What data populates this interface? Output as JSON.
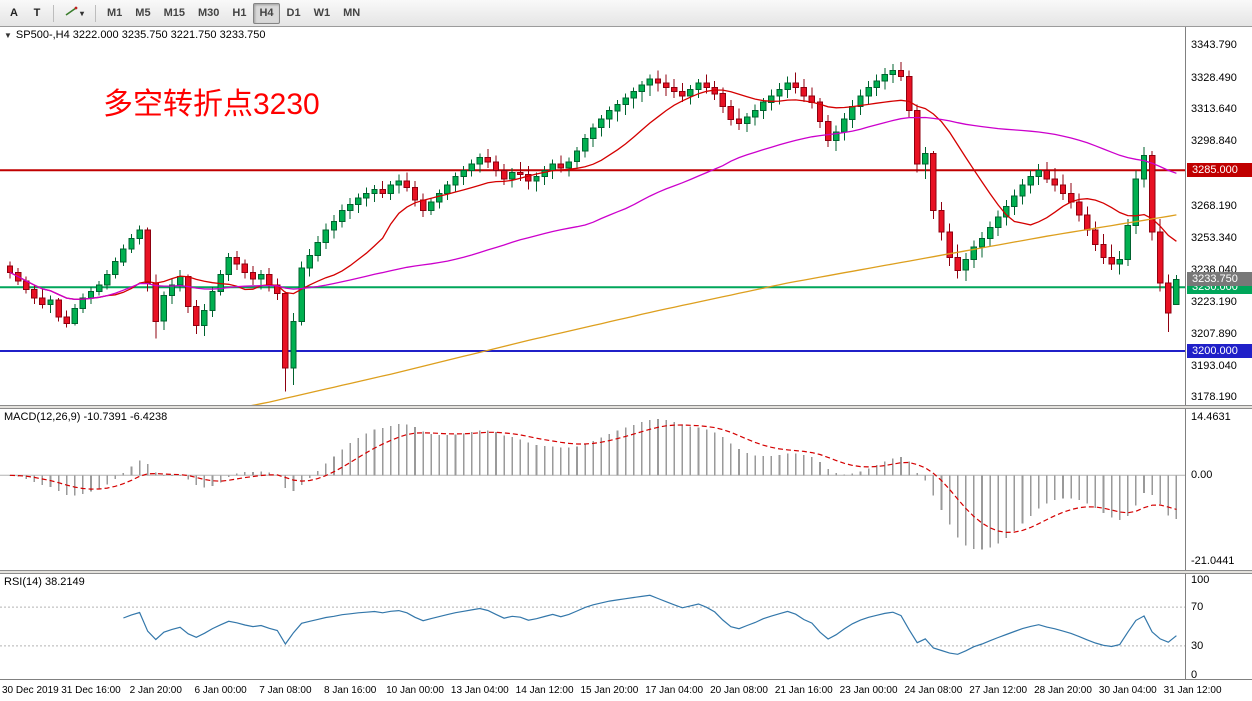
{
  "toolbar": {
    "tool_buttons": [
      {
        "id": "arrow-tool",
        "label": "A"
      },
      {
        "id": "text-tool",
        "label": "T"
      }
    ],
    "timeframes": [
      "M1",
      "M5",
      "M15",
      "M30",
      "H1",
      "H4",
      "D1",
      "W1",
      "MN"
    ],
    "active_timeframe": "H4"
  },
  "icons": {
    "collapse_arrow": "▼",
    "dropdown_caret": "▾"
  },
  "main_chart": {
    "symbol_line": "SP500-,H4 3222.000 3235.750 3221.750 3233.750",
    "annotation": {
      "text": "多空转折点3230",
      "color": "#ff0000"
    },
    "y_ticks": [
      "3343.790",
      "3328.490",
      "3313.640",
      "3298.840",
      "3268.190",
      "3253.340",
      "3238.040",
      "3223.190",
      "3207.890",
      "3193.040",
      "3178.190"
    ],
    "hlines": [
      {
        "label": "3285.000",
        "value": 3285.0,
        "color": "#c00000",
        "thickness": 2
      },
      {
        "label": "3230.000",
        "value": 3230.0,
        "color": "#00a65a",
        "thickness": 2
      },
      {
        "label": "3200.000",
        "value": 3200.0,
        "color": "#2020c8",
        "thickness": 2
      }
    ],
    "current_price": {
      "label": "3233.750",
      "value": 3233.75,
      "color": "#787878"
    },
    "price_axis": {
      "top": 3350.5,
      "bottom": 3176.5
    }
  },
  "macd_panel": {
    "label": "MACD(12,26,9) -10.7391 -6.4238",
    "ticks": [
      {
        "label": "14.4631",
        "value": 14.4631
      },
      {
        "label": "0.00",
        "value": 0
      },
      {
        "label": "-21.0441",
        "value": -21.0441
      }
    ]
  },
  "rsi_panel": {
    "label": "RSI(14) 38.2149",
    "value": 38.2149,
    "ticks": [
      {
        "label": "100",
        "value": 100
      },
      {
        "label": "70",
        "value": 70
      },
      {
        "label": "30",
        "value": 30
      },
      {
        "label": "0",
        "value": 0
      }
    ],
    "dashed_levels": [
      70,
      30
    ]
  },
  "chart_data": {
    "type": "candlestick",
    "symbol": "SP500-",
    "timeframe": "H4",
    "last_bar": {
      "open": 3222.0,
      "high": 3235.75,
      "low": 3221.75,
      "close": 3233.75
    },
    "time_labels": [
      "30 Dec 2019",
      "31 Dec 16:00",
      "2 Jan 20:00",
      "6 Jan 00:00",
      "7 Jan 08:00",
      "8 Jan 16:00",
      "10 Jan 00:00",
      "13 Jan 04:00",
      "14 Jan 12:00",
      "15 Jan 20:00",
      "17 Jan 04:00",
      "20 Jan 08:00",
      "21 Jan 16:00",
      "23 Jan 00:00",
      "24 Jan 08:00",
      "27 Jan 12:00",
      "28 Jan 20:00",
      "30 Jan 04:00",
      "31 Jan 12:00"
    ],
    "label_every_n_bars": 8,
    "first_label_bar_index": 2,
    "ohlc": [
      [
        3240,
        3242,
        3234,
        3237
      ],
      [
        3237,
        3239,
        3231,
        3233
      ],
      [
        3233,
        3235,
        3227,
        3229
      ],
      [
        3229,
        3231,
        3222,
        3225
      ],
      [
        3225,
        3229,
        3220,
        3222
      ],
      [
        3222,
        3226,
        3218,
        3224
      ],
      [
        3224,
        3225,
        3214,
        3216
      ],
      [
        3216,
        3219,
        3211,
        3213
      ],
      [
        3213,
        3222,
        3212,
        3220
      ],
      [
        3220,
        3227,
        3218,
        3225
      ],
      [
        3225,
        3230,
        3222,
        3228
      ],
      [
        3228,
        3233,
        3226,
        3231
      ],
      [
        3231,
        3238,
        3229,
        3236
      ],
      [
        3236,
        3244,
        3234,
        3242
      ],
      [
        3242,
        3250,
        3240,
        3248
      ],
      [
        3248,
        3255,
        3246,
        3253
      ],
      [
        3253,
        3259,
        3250,
        3257
      ],
      [
        3257,
        3258,
        3228,
        3232
      ],
      [
        3232,
        3236,
        3206,
        3214
      ],
      [
        3214,
        3228,
        3210,
        3226
      ],
      [
        3226,
        3234,
        3222,
        3231
      ],
      [
        3231,
        3238,
        3228,
        3235
      ],
      [
        3235,
        3236,
        3218,
        3221
      ],
      [
        3221,
        3224,
        3208,
        3212
      ],
      [
        3212,
        3222,
        3207,
        3219
      ],
      [
        3219,
        3230,
        3216,
        3228
      ],
      [
        3228,
        3238,
        3226,
        3236
      ],
      [
        3236,
        3246,
        3233,
        3244
      ],
      [
        3244,
        3247,
        3238,
        3241
      ],
      [
        3241,
        3243,
        3234,
        3237
      ],
      [
        3237,
        3240,
        3231,
        3234
      ],
      [
        3234,
        3238,
        3229,
        3236
      ],
      [
        3236,
        3239,
        3228,
        3231
      ],
      [
        3231,
        3234,
        3224,
        3227
      ],
      [
        3227,
        3228,
        3181,
        3192
      ],
      [
        3192,
        3218,
        3184,
        3214
      ],
      [
        3214,
        3242,
        3212,
        3239
      ],
      [
        3239,
        3248,
        3235,
        3245
      ],
      [
        3245,
        3254,
        3242,
        3251
      ],
      [
        3251,
        3260,
        3248,
        3257
      ],
      [
        3257,
        3264,
        3253,
        3261
      ],
      [
        3261,
        3269,
        3258,
        3266
      ],
      [
        3266,
        3272,
        3262,
        3269
      ],
      [
        3269,
        3274,
        3265,
        3272
      ],
      [
        3272,
        3277,
        3268,
        3274
      ],
      [
        3274,
        3278,
        3270,
        3276
      ],
      [
        3276,
        3280,
        3272,
        3274
      ],
      [
        3274,
        3280,
        3271,
        3278
      ],
      [
        3278,
        3283,
        3274,
        3280
      ],
      [
        3280,
        3284,
        3275,
        3277
      ],
      [
        3277,
        3280,
        3268,
        3271
      ],
      [
        3271,
        3274,
        3263,
        3266
      ],
      [
        3266,
        3272,
        3264,
        3270
      ],
      [
        3270,
        3276,
        3267,
        3274
      ],
      [
        3274,
        3280,
        3271,
        3278
      ],
      [
        3278,
        3284,
        3275,
        3282
      ],
      [
        3282,
        3287,
        3278,
        3285
      ],
      [
        3285,
        3290,
        3282,
        3288
      ],
      [
        3288,
        3293,
        3284,
        3291
      ],
      [
        3291,
        3295,
        3286,
        3289
      ],
      [
        3289,
        3292,
        3282,
        3285
      ],
      [
        3285,
        3288,
        3278,
        3281
      ],
      [
        3281,
        3286,
        3277,
        3284
      ],
      [
        3284,
        3289,
        3280,
        3283
      ],
      [
        3283,
        3287,
        3276,
        3280
      ],
      [
        3280,
        3284,
        3275,
        3282
      ],
      [
        3282,
        3287,
        3278,
        3285
      ],
      [
        3285,
        3290,
        3281,
        3288
      ],
      [
        3288,
        3292,
        3284,
        3286
      ],
      [
        3286,
        3291,
        3282,
        3289
      ],
      [
        3289,
        3296,
        3286,
        3294
      ],
      [
        3294,
        3302,
        3291,
        3300
      ],
      [
        3300,
        3307,
        3296,
        3305
      ],
      [
        3305,
        3311,
        3301,
        3309
      ],
      [
        3309,
        3315,
        3305,
        3313
      ],
      [
        3313,
        3318,
        3308,
        3316
      ],
      [
        3316,
        3321,
        3311,
        3319
      ],
      [
        3319,
        3324,
        3314,
        3322
      ],
      [
        3322,
        3327,
        3317,
        3325
      ],
      [
        3325,
        3330,
        3320,
        3328
      ],
      [
        3328,
        3332,
        3322,
        3326
      ],
      [
        3326,
        3330,
        3320,
        3324
      ],
      [
        3324,
        3328,
        3319,
        3322
      ],
      [
        3322,
        3326,
        3317,
        3320
      ],
      [
        3320,
        3325,
        3316,
        3323
      ],
      [
        3323,
        3328,
        3319,
        3326
      ],
      [
        3326,
        3330,
        3321,
        3324
      ],
      [
        3324,
        3327,
        3318,
        3321
      ],
      [
        3321,
        3324,
        3312,
        3315
      ],
      [
        3315,
        3318,
        3306,
        3309
      ],
      [
        3309,
        3314,
        3304,
        3307
      ],
      [
        3307,
        3312,
        3303,
        3310
      ],
      [
        3310,
        3316,
        3306,
        3313
      ],
      [
        3313,
        3319,
        3309,
        3317
      ],
      [
        3317,
        3323,
        3313,
        3320
      ],
      [
        3320,
        3326,
        3316,
        3323
      ],
      [
        3323,
        3329,
        3319,
        3326
      ],
      [
        3326,
        3331,
        3321,
        3324
      ],
      [
        3324,
        3328,
        3317,
        3320
      ],
      [
        3320,
        3324,
        3314,
        3317
      ],
      [
        3317,
        3319,
        3305,
        3308
      ],
      [
        3308,
        3311,
        3296,
        3299
      ],
      [
        3299,
        3306,
        3294,
        3303
      ],
      [
        3303,
        3312,
        3299,
        3309
      ],
      [
        3309,
        3318,
        3305,
        3315
      ],
      [
        3315,
        3323,
        3311,
        3320
      ],
      [
        3320,
        3327,
        3316,
        3324
      ],
      [
        3324,
        3330,
        3320,
        3327
      ],
      [
        3327,
        3333,
        3323,
        3330
      ],
      [
        3330,
        3335,
        3326,
        3332
      ],
      [
        3332,
        3336,
        3327,
        3329
      ],
      [
        3329,
        3332,
        3310,
        3313
      ],
      [
        3313,
        3316,
        3284,
        3288
      ],
      [
        3288,
        3296,
        3281,
        3293
      ],
      [
        3293,
        3294,
        3262,
        3266
      ],
      [
        3266,
        3270,
        3252,
        3256
      ],
      [
        3256,
        3260,
        3240,
        3244
      ],
      [
        3244,
        3250,
        3234,
        3238
      ],
      [
        3238,
        3246,
        3233,
        3243
      ],
      [
        3243,
        3252,
        3239,
        3249
      ],
      [
        3249,
        3256,
        3244,
        3253
      ],
      [
        3253,
        3261,
        3249,
        3258
      ],
      [
        3258,
        3266,
        3254,
        3263
      ],
      [
        3263,
        3271,
        3259,
        3268
      ],
      [
        3268,
        3276,
        3264,
        3273
      ],
      [
        3273,
        3281,
        3269,
        3278
      ],
      [
        3278,
        3285,
        3274,
        3282
      ],
      [
        3282,
        3288,
        3278,
        3285
      ],
      [
        3285,
        3289,
        3279,
        3281
      ],
      [
        3281,
        3286,
        3275,
        3278
      ],
      [
        3278,
        3283,
        3271,
        3274
      ],
      [
        3274,
        3279,
        3267,
        3270
      ],
      [
        3270,
        3274,
        3261,
        3264
      ],
      [
        3264,
        3268,
        3254,
        3257
      ],
      [
        3257,
        3261,
        3247,
        3250
      ],
      [
        3250,
        3255,
        3241,
        3244
      ],
      [
        3244,
        3250,
        3238,
        3241
      ],
      [
        3241,
        3247,
        3236,
        3243
      ],
      [
        3243,
        3262,
        3240,
        3259
      ],
      [
        3259,
        3285,
        3255,
        3281
      ],
      [
        3281,
        3296,
        3277,
        3292
      ],
      [
        3292,
        3294,
        3252,
        3256
      ],
      [
        3256,
        3262,
        3228,
        3232
      ],
      [
        3232,
        3236,
        3209,
        3218
      ],
      [
        3222,
        3235.75,
        3221.75,
        3233.75
      ]
    ],
    "moving_averages": [
      {
        "name": "ma-fast",
        "color": "#d40000",
        "type": "sma",
        "period": 13
      },
      {
        "name": "ma-medium",
        "color": "#cc00cc",
        "type": "sma",
        "period": 55
      },
      {
        "name": "ma-slow",
        "color": "#dd9f1e",
        "type": "anchors",
        "anchors": [
          [
            0,
            3155
          ],
          [
            16,
            3164
          ],
          [
            32,
            3176
          ],
          [
            48,
            3190
          ],
          [
            64,
            3205
          ],
          [
            80,
            3219
          ],
          [
            96,
            3232
          ],
          [
            112,
            3243
          ],
          [
            128,
            3254
          ],
          [
            136,
            3259
          ],
          [
            144,
            3264
          ]
        ]
      }
    ],
    "indicators": {
      "macd": {
        "fast": 12,
        "slow": 26,
        "signal": 9,
        "histogram_color": "#9a9a9a",
        "signal_color": "#d40000"
      },
      "rsi": {
        "period": 14,
        "color": "#3377aa"
      }
    },
    "candle_colors": {
      "bull": "#00b050",
      "bull_border": "#00632f",
      "bear": "#e81123",
      "bear_border": "#8f000f"
    }
  }
}
